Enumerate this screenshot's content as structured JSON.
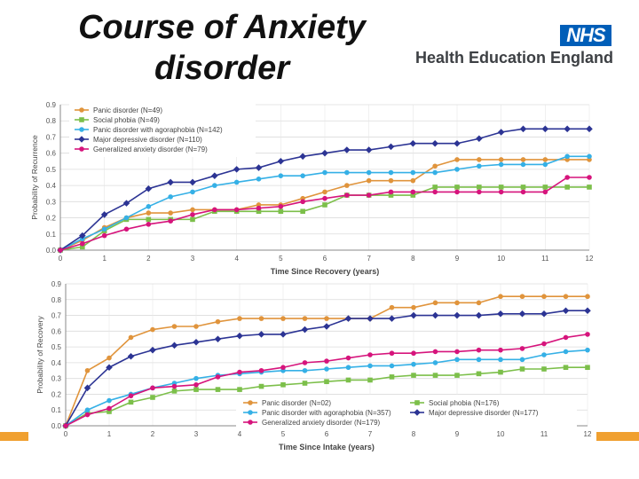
{
  "slide": {
    "title": "Course of Anxiety disorder",
    "logo": {
      "badge": "NHS",
      "org_name": "Health Education England"
    }
  },
  "colors": {
    "panic": "#e0943c",
    "social": "#7cbf4a",
    "agoraphobia": "#35b0e6",
    "depressive": "#2c3494",
    "gad": "#d6147c"
  },
  "chart_data": [
    {
      "type": "line",
      "title": "",
      "xlabel": "Time Since Recovery (years)",
      "ylabel": "Probability of Recurrence",
      "xlim": [
        0,
        12
      ],
      "ylim": [
        0,
        0.9
      ],
      "xticks": [
        0,
        1,
        2,
        3,
        4,
        5,
        6,
        7,
        8,
        9,
        10,
        11,
        12
      ],
      "yticks": [
        0.0,
        0.1,
        0.2,
        0.3,
        0.4,
        0.5,
        0.6,
        0.7,
        0.8,
        0.9
      ],
      "grid": true,
      "legend": "top-left",
      "x": [
        0,
        0.5,
        1,
        1.5,
        2,
        2.5,
        3,
        3.5,
        4,
        4.5,
        5,
        5.5,
        6,
        6.5,
        7,
        7.5,
        8,
        8.5,
        9,
        9.5,
        10,
        10.5,
        11,
        11.5,
        12
      ],
      "series": [
        {
          "name": "Panic disorder (N=49)",
          "key": "panic",
          "marker": "circle",
          "values": [
            0.0,
            0.06,
            0.14,
            0.2,
            0.23,
            0.23,
            0.25,
            0.25,
            0.25,
            0.28,
            0.28,
            0.32,
            0.36,
            0.4,
            0.43,
            0.43,
            0.43,
            0.52,
            0.56,
            0.56,
            0.56,
            0.56,
            0.56,
            0.56,
            0.56
          ]
        },
        {
          "name": "Social phobia (N=49)",
          "key": "social",
          "marker": "square",
          "values": [
            0.0,
            0.02,
            0.12,
            0.19,
            0.19,
            0.19,
            0.19,
            0.24,
            0.24,
            0.24,
            0.24,
            0.24,
            0.28,
            0.34,
            0.34,
            0.34,
            0.34,
            0.39,
            0.39,
            0.39,
            0.39,
            0.39,
            0.39,
            0.39,
            0.39
          ]
        },
        {
          "name": "Panic disorder with agoraphobia (N=142)",
          "key": "agoraphobia",
          "marker": "circle",
          "values": [
            0.0,
            0.07,
            0.13,
            0.2,
            0.27,
            0.33,
            0.36,
            0.4,
            0.42,
            0.44,
            0.46,
            0.46,
            0.48,
            0.48,
            0.48,
            0.48,
            0.48,
            0.48,
            0.5,
            0.52,
            0.53,
            0.53,
            0.53,
            0.58,
            0.58
          ]
        },
        {
          "name": "Major depressive disorder (N=110)",
          "key": "depressive",
          "marker": "diamond",
          "values": [
            0.0,
            0.09,
            0.22,
            0.29,
            0.38,
            0.42,
            0.42,
            0.46,
            0.5,
            0.51,
            0.55,
            0.58,
            0.6,
            0.62,
            0.62,
            0.64,
            0.66,
            0.66,
            0.66,
            0.69,
            0.73,
            0.75,
            0.75,
            0.75,
            0.75
          ]
        },
        {
          "name": "Generalized anxiety disorder (N=79)",
          "key": "gad",
          "marker": "circle",
          "values": [
            0.0,
            0.04,
            0.09,
            0.13,
            0.16,
            0.18,
            0.22,
            0.25,
            0.25,
            0.26,
            0.27,
            0.3,
            0.32,
            0.34,
            0.34,
            0.36,
            0.36,
            0.36,
            0.36,
            0.36,
            0.36,
            0.36,
            0.36,
            0.45,
            0.45
          ]
        }
      ]
    },
    {
      "type": "line",
      "title": "",
      "xlabel": "Time Since Intake (years)",
      "ylabel": "Probability of Recovery",
      "xlim": [
        0,
        12
      ],
      "ylim": [
        0,
        0.9
      ],
      "xticks": [
        0,
        1,
        2,
        3,
        4,
        5,
        6,
        7,
        8,
        9,
        10,
        11,
        12
      ],
      "yticks": [
        0.0,
        0.1,
        0.2,
        0.3,
        0.4,
        0.5,
        0.6,
        0.7,
        0.8,
        0.9
      ],
      "grid": true,
      "legend": "bottom-right",
      "x": [
        0,
        0.5,
        1,
        1.5,
        2,
        2.5,
        3,
        3.5,
        4,
        4.5,
        5,
        5.5,
        6,
        6.5,
        7,
        7.5,
        8,
        8.5,
        9,
        9.5,
        10,
        10.5,
        11,
        11.5,
        12
      ],
      "series": [
        {
          "name": "Panic disorder (N=02)",
          "key": "panic",
          "marker": "circle",
          "values": [
            0.0,
            0.35,
            0.43,
            0.56,
            0.61,
            0.63,
            0.63,
            0.66,
            0.68,
            0.68,
            0.68,
            0.68,
            0.68,
            0.68,
            0.68,
            0.75,
            0.75,
            0.78,
            0.78,
            0.78,
            0.82,
            0.82,
            0.82,
            0.82,
            0.82
          ]
        },
        {
          "name": "Social phobia (N=176)",
          "key": "social",
          "marker": "square",
          "values": [
            0.0,
            0.08,
            0.09,
            0.15,
            0.18,
            0.22,
            0.23,
            0.23,
            0.23,
            0.25,
            0.26,
            0.27,
            0.28,
            0.29,
            0.29,
            0.31,
            0.32,
            0.32,
            0.32,
            0.33,
            0.34,
            0.36,
            0.36,
            0.37,
            0.37
          ]
        },
        {
          "name": "Panic disorder with agoraphobia (N=357)",
          "key": "agoraphobia",
          "marker": "circle",
          "values": [
            0.0,
            0.1,
            0.16,
            0.2,
            0.24,
            0.27,
            0.3,
            0.32,
            0.33,
            0.34,
            0.35,
            0.35,
            0.36,
            0.37,
            0.38,
            0.38,
            0.39,
            0.4,
            0.42,
            0.42,
            0.42,
            0.42,
            0.45,
            0.47,
            0.48
          ]
        },
        {
          "name": "Major depressive disorder (N=177)",
          "key": "depressive",
          "marker": "diamond",
          "values": [
            0.0,
            0.24,
            0.37,
            0.44,
            0.48,
            0.51,
            0.53,
            0.55,
            0.57,
            0.58,
            0.58,
            0.61,
            0.63,
            0.68,
            0.68,
            0.68,
            0.7,
            0.7,
            0.7,
            0.7,
            0.71,
            0.71,
            0.71,
            0.73,
            0.73
          ]
        },
        {
          "name": "Generalized anxiety disorder (N=179)",
          "key": "gad",
          "marker": "circle",
          "values": [
            0.0,
            0.07,
            0.11,
            0.19,
            0.24,
            0.25,
            0.26,
            0.31,
            0.34,
            0.35,
            0.37,
            0.4,
            0.41,
            0.43,
            0.45,
            0.46,
            0.46,
            0.47,
            0.47,
            0.48,
            0.48,
            0.49,
            0.52,
            0.56,
            0.58
          ]
        }
      ]
    }
  ]
}
